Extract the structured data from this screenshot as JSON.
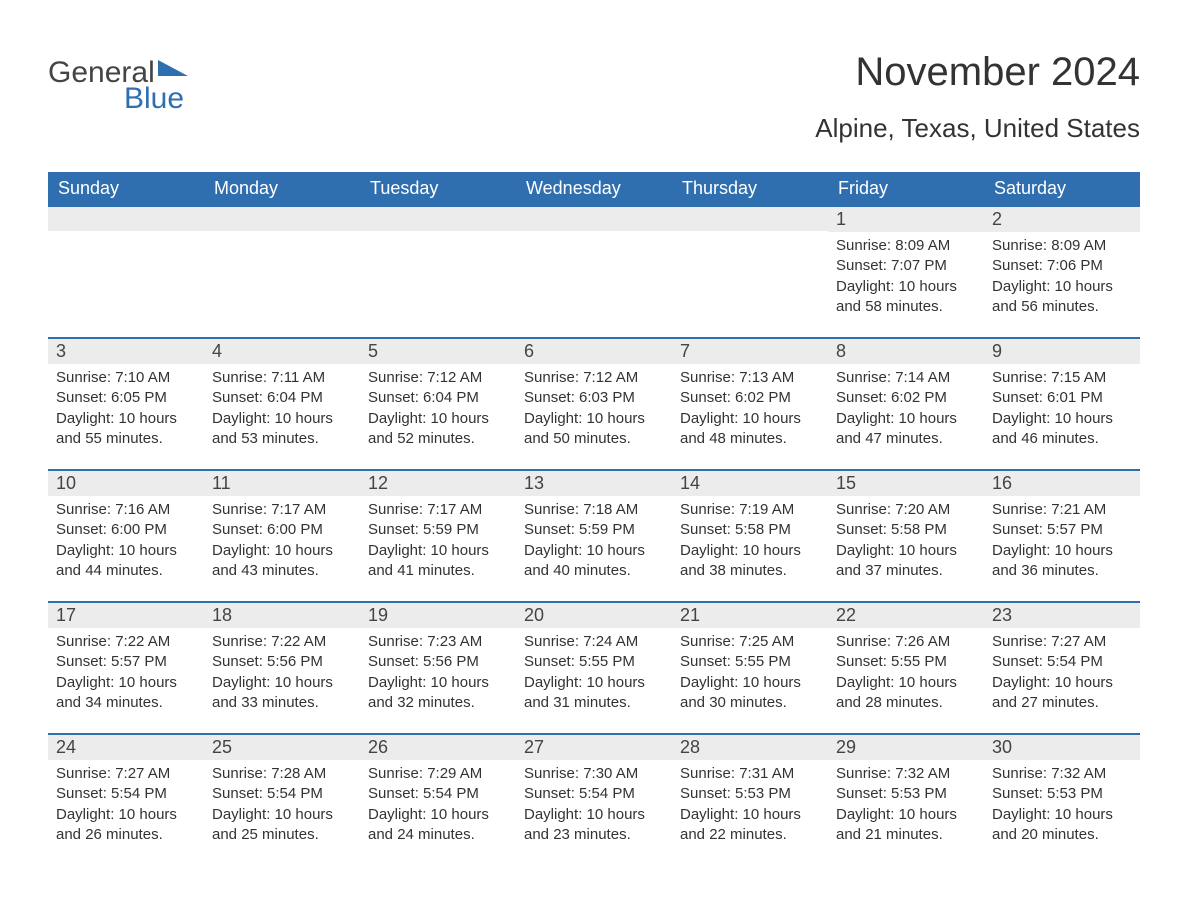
{
  "logo": {
    "word1": "General",
    "word2": "Blue",
    "accent_color": "#2f6fb0"
  },
  "title": "November 2024",
  "location": "Alpine, Texas, United States",
  "colors": {
    "header_bg": "#2f6fb0",
    "header_text": "#ffffff",
    "daynum_bg": "#ececec",
    "border": "#2f6fb0",
    "body_text": "#333333",
    "page_bg": "#ffffff"
  },
  "fonts": {
    "title_size": 40,
    "location_size": 26,
    "dayheader_size": 18,
    "cell_size": 15
  },
  "weekdays": [
    "Sunday",
    "Monday",
    "Tuesday",
    "Wednesday",
    "Thursday",
    "Friday",
    "Saturday"
  ],
  "leading_blanks": 5,
  "days": [
    {
      "n": 1,
      "sunrise": "8:09 AM",
      "sunset": "7:07 PM",
      "daylight": "10 hours and 58 minutes."
    },
    {
      "n": 2,
      "sunrise": "8:09 AM",
      "sunset": "7:06 PM",
      "daylight": "10 hours and 56 minutes."
    },
    {
      "n": 3,
      "sunrise": "7:10 AM",
      "sunset": "6:05 PM",
      "daylight": "10 hours and 55 minutes."
    },
    {
      "n": 4,
      "sunrise": "7:11 AM",
      "sunset": "6:04 PM",
      "daylight": "10 hours and 53 minutes."
    },
    {
      "n": 5,
      "sunrise": "7:12 AM",
      "sunset": "6:04 PM",
      "daylight": "10 hours and 52 minutes."
    },
    {
      "n": 6,
      "sunrise": "7:12 AM",
      "sunset": "6:03 PM",
      "daylight": "10 hours and 50 minutes."
    },
    {
      "n": 7,
      "sunrise": "7:13 AM",
      "sunset": "6:02 PM",
      "daylight": "10 hours and 48 minutes."
    },
    {
      "n": 8,
      "sunrise": "7:14 AM",
      "sunset": "6:02 PM",
      "daylight": "10 hours and 47 minutes."
    },
    {
      "n": 9,
      "sunrise": "7:15 AM",
      "sunset": "6:01 PM",
      "daylight": "10 hours and 46 minutes."
    },
    {
      "n": 10,
      "sunrise": "7:16 AM",
      "sunset": "6:00 PM",
      "daylight": "10 hours and 44 minutes."
    },
    {
      "n": 11,
      "sunrise": "7:17 AM",
      "sunset": "6:00 PM",
      "daylight": "10 hours and 43 minutes."
    },
    {
      "n": 12,
      "sunrise": "7:17 AM",
      "sunset": "5:59 PM",
      "daylight": "10 hours and 41 minutes."
    },
    {
      "n": 13,
      "sunrise": "7:18 AM",
      "sunset": "5:59 PM",
      "daylight": "10 hours and 40 minutes."
    },
    {
      "n": 14,
      "sunrise": "7:19 AM",
      "sunset": "5:58 PM",
      "daylight": "10 hours and 38 minutes."
    },
    {
      "n": 15,
      "sunrise": "7:20 AM",
      "sunset": "5:58 PM",
      "daylight": "10 hours and 37 minutes."
    },
    {
      "n": 16,
      "sunrise": "7:21 AM",
      "sunset": "5:57 PM",
      "daylight": "10 hours and 36 minutes."
    },
    {
      "n": 17,
      "sunrise": "7:22 AM",
      "sunset": "5:57 PM",
      "daylight": "10 hours and 34 minutes."
    },
    {
      "n": 18,
      "sunrise": "7:22 AM",
      "sunset": "5:56 PM",
      "daylight": "10 hours and 33 minutes."
    },
    {
      "n": 19,
      "sunrise": "7:23 AM",
      "sunset": "5:56 PM",
      "daylight": "10 hours and 32 minutes."
    },
    {
      "n": 20,
      "sunrise": "7:24 AM",
      "sunset": "5:55 PM",
      "daylight": "10 hours and 31 minutes."
    },
    {
      "n": 21,
      "sunrise": "7:25 AM",
      "sunset": "5:55 PM",
      "daylight": "10 hours and 30 minutes."
    },
    {
      "n": 22,
      "sunrise": "7:26 AM",
      "sunset": "5:55 PM",
      "daylight": "10 hours and 28 minutes."
    },
    {
      "n": 23,
      "sunrise": "7:27 AM",
      "sunset": "5:54 PM",
      "daylight": "10 hours and 27 minutes."
    },
    {
      "n": 24,
      "sunrise": "7:27 AM",
      "sunset": "5:54 PM",
      "daylight": "10 hours and 26 minutes."
    },
    {
      "n": 25,
      "sunrise": "7:28 AM",
      "sunset": "5:54 PM",
      "daylight": "10 hours and 25 minutes."
    },
    {
      "n": 26,
      "sunrise": "7:29 AM",
      "sunset": "5:54 PM",
      "daylight": "10 hours and 24 minutes."
    },
    {
      "n": 27,
      "sunrise": "7:30 AM",
      "sunset": "5:54 PM",
      "daylight": "10 hours and 23 minutes."
    },
    {
      "n": 28,
      "sunrise": "7:31 AM",
      "sunset": "5:53 PM",
      "daylight": "10 hours and 22 minutes."
    },
    {
      "n": 29,
      "sunrise": "7:32 AM",
      "sunset": "5:53 PM",
      "daylight": "10 hours and 21 minutes."
    },
    {
      "n": 30,
      "sunrise": "7:32 AM",
      "sunset": "5:53 PM",
      "daylight": "10 hours and 20 minutes."
    }
  ],
  "labels": {
    "sunrise": "Sunrise: ",
    "sunset": "Sunset: ",
    "daylight": "Daylight: "
  }
}
